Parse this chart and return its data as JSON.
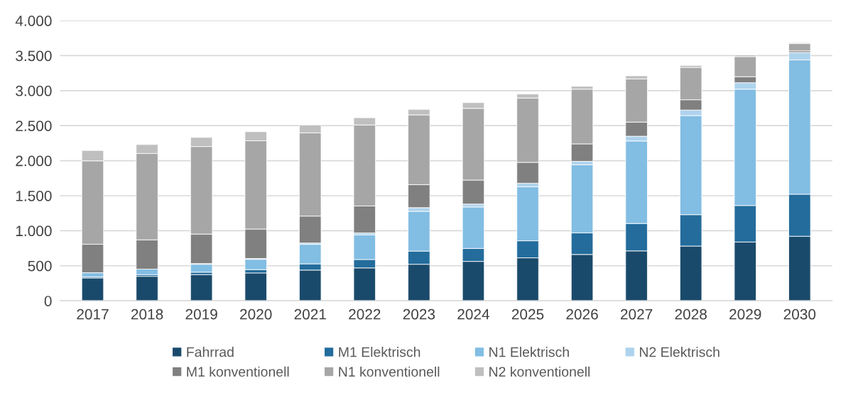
{
  "chart_data": {
    "type": "bar",
    "stacked": true,
    "grid": "y",
    "legend": "bottom",
    "categories": [
      "2017",
      "2018",
      "2019",
      "2020",
      "2021",
      "2022",
      "2023",
      "2024",
      "2025",
      "2026",
      "2027",
      "2028",
      "2029",
      "2030"
    ],
    "ylim": [
      0,
      4000
    ],
    "yticks": [
      {
        "value": 0,
        "label": "0"
      },
      {
        "value": 500,
        "label": "500"
      },
      {
        "value": 1000,
        "label": "1.000"
      },
      {
        "value": 1500,
        "label": "1.500"
      },
      {
        "value": 2000,
        "label": "2.000"
      },
      {
        "value": 2500,
        "label": "2.500"
      },
      {
        "value": 3000,
        "label": "3.000"
      },
      {
        "value": 3500,
        "label": "3.500"
      },
      {
        "value": 4000,
        "label": "4.000"
      }
    ],
    "series": [
      {
        "name": "Fahrrad",
        "color": "#1a4a6b",
        "values": [
          325,
          349,
          373,
          397,
          438,
          469,
          521,
          562,
          613,
          661,
          712,
          781,
          839,
          921
        ]
      },
      {
        "name": "M1 Elektrisch",
        "color": "#236c9c",
        "values": [
          17,
          24,
          35,
          48,
          89,
          120,
          188,
          185,
          243,
          308,
          391,
          448,
          521,
          600
        ]
      },
      {
        "name": "N1 Elektrisch",
        "color": "#82bde3",
        "values": [
          58,
          79,
          113,
          147,
          278,
          353,
          568,
          592,
          771,
          973,
          1178,
          1415,
          1661,
          1917
        ]
      },
      {
        "name": "N2 Elektrisch",
        "color": "#aed3ed",
        "values": [
          null,
          null,
          10,
          11,
          20,
          27,
          52,
          41,
          51,
          48,
          68,
          79,
          92,
          107
        ]
      },
      {
        "name": "M1 konventionell",
        "color": "#808080",
        "values": [
          407,
          418,
          421,
          421,
          384,
          384,
          329,
          343,
          298,
          250,
          202,
          147,
          86,
          23
        ]
      },
      {
        "name": "N1 konventionell",
        "color": "#a6a6a6",
        "values": [
          1191,
          1233,
          1250,
          1260,
          1188,
          1157,
          996,
          1024,
          918,
          781,
          617,
          462,
          287,
          103
        ]
      },
      {
        "name": "N2 konventionell",
        "color": "#bfbfbf",
        "values": [
          148,
          127,
          130,
          130,
          113,
          103,
          79,
          82,
          58,
          41,
          44,
          28,
          24,
          14
        ]
      }
    ]
  }
}
